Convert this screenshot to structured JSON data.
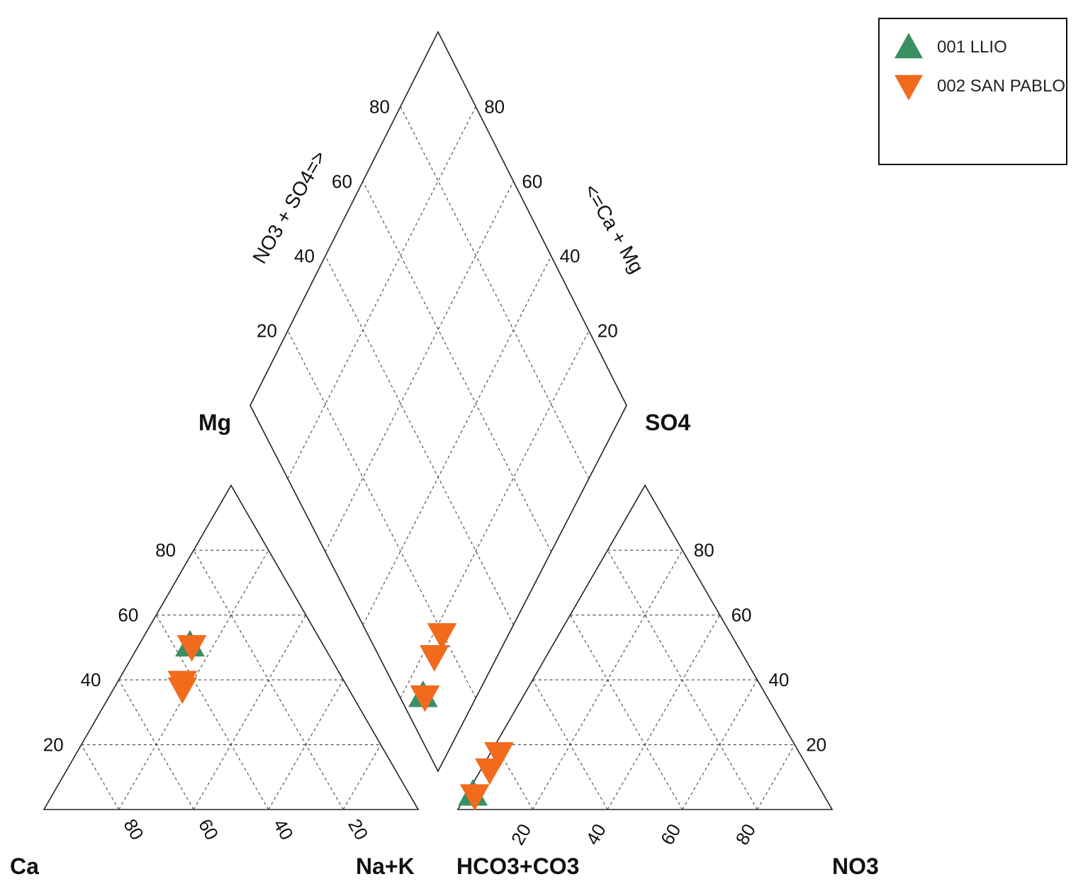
{
  "chart_data": {
    "type": "piper",
    "legend": {
      "placement": "top-right",
      "entries": [
        {
          "name": "001 LLIO",
          "marker": "triangle-up",
          "color": "#3a8f63"
        },
        {
          "name": "002 SAN PABLO",
          "marker": "triangle-down",
          "color": "#f26b1d"
        }
      ]
    },
    "cation_triangle": {
      "corners": {
        "left": "Ca",
        "top": "Mg",
        "right": "Na+K"
      },
      "left_ticks": [
        "20",
        "40",
        "60",
        "80"
      ],
      "bottom_ticks": [
        "80",
        "60",
        "40",
        "20"
      ]
    },
    "anion_triangle": {
      "corners": {
        "left": "HCO3+CO3",
        "top": "SO4",
        "right": "NO3"
      },
      "right_ticks": [
        "20",
        "40",
        "60",
        "80"
      ],
      "bottom_ticks": [
        "20",
        "40",
        "60",
        "80"
      ]
    },
    "diamond": {
      "left_axis_label": "NO3 + SO4=>",
      "right_axis_label": "<=Ca + Mg",
      "left_ticks": [
        "20",
        "40",
        "60",
        "80"
      ],
      "right_ticks": [
        "20",
        "40",
        "60",
        "80"
      ]
    },
    "series": [
      {
        "name": "001 LLIO",
        "marker": "triangle-up",
        "color": "#3a8f63",
        "samples": [
          {
            "Ca": 36,
            "Mg": 50,
            "NaK": 14,
            "HCO3CO3": 94,
            "SO4": 4,
            "NO3": 2
          }
        ]
      },
      {
        "name": "002 SAN PABLO",
        "marker": "triangle-down",
        "color": "#f26b1d",
        "samples": [
          {
            "Ca": 35,
            "Mg": 51,
            "NaK": 14,
            "HCO3CO3": 93,
            "SO4": 5,
            "NO3": 2
          },
          {
            "Ca": 43,
            "Mg": 40,
            "NaK": 17,
            "HCO3CO3": 85,
            "SO4": 13,
            "NO3": 2
          },
          {
            "Ca": 44,
            "Mg": 38,
            "NaK": 18,
            "HCO3CO3": 80,
            "SO4": 18,
            "NO3": 2
          }
        ]
      }
    ]
  }
}
